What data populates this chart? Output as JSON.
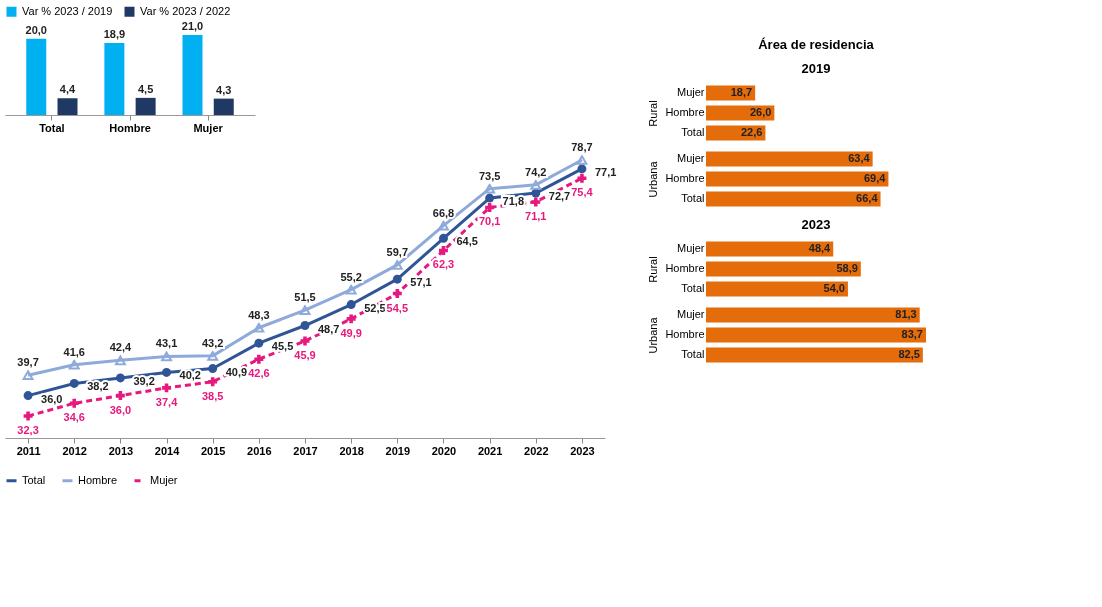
{
  "chart_data": [
    {
      "type": "bar",
      "categories": [
        "Total",
        "Hombre",
        "Mujer"
      ],
      "legend": "top",
      "tick_labels": "x",
      "series": [
        {
          "name": "Var % 2023 / 2019",
          "color": "#00b0f0",
          "values": [
            20.0,
            18.9,
            21.0
          ],
          "value_labels": [
            "20,0",
            "18,9",
            "21,0"
          ]
        },
        {
          "name": "Var % 2023 / 2022",
          "color": "#1f3864",
          "values": [
            4.4,
            4.5,
            4.3
          ],
          "value_labels": [
            "4,4",
            "4,5",
            "4,3"
          ]
        }
      ]
    },
    {
      "type": "line",
      "categories": [
        "2011",
        "2012",
        "2013",
        "2014",
        "2015",
        "2016",
        "2017",
        "2018",
        "2019",
        "2020",
        "2021",
        "2022",
        "2023"
      ],
      "legend": "bottom",
      "tick_labels": "x",
      "grid": false,
      "series": [
        {
          "name": "Total",
          "color": "#2f5597",
          "marker": "circle",
          "line_style": "solid",
          "values": [
            36.0,
            38.2,
            39.2,
            40.2,
            40.9,
            45.5,
            48.7,
            52.5,
            57.1,
            64.5,
            71.8,
            72.7,
            77.1
          ],
          "value_labels": [
            "36,0",
            "38,2",
            "39,2",
            "40,2",
            "40,9",
            "45,5",
            "48,7",
            "52,5",
            "57,1",
            "64,5",
            "71,8",
            "72,7",
            "77,1"
          ]
        },
        {
          "name": "Hombre",
          "color": "#8eaadb",
          "marker": "triangle",
          "line_style": "solid",
          "values": [
            39.7,
            41.6,
            42.4,
            43.1,
            43.2,
            48.3,
            51.5,
            55.2,
            59.7,
            66.8,
            73.5,
            74.2,
            78.7
          ],
          "value_labels": [
            "39,7",
            "41,6",
            "42,4",
            "43,1",
            "43,2",
            "48,3",
            "51,5",
            "55,2",
            "59,7",
            "66,8",
            "73,5",
            "74,2",
            "78,7"
          ]
        },
        {
          "name": "Mujer",
          "color": "#e6197e",
          "marker": "cross",
          "line_style": "dashed",
          "values": [
            32.3,
            34.6,
            36.0,
            37.4,
            38.5,
            42.6,
            45.9,
            49.9,
            54.5,
            62.3,
            70.1,
            71.1,
            75.4
          ],
          "value_labels": [
            "32,3",
            "34,6",
            "36,0",
            "37,4",
            "38,5",
            "42,6",
            "45,9",
            "49,9",
            "54,5",
            "62,3",
            "70,1",
            "71,1",
            "75,4"
          ]
        }
      ]
    },
    {
      "type": "other",
      "title": "Área de residencia"
    },
    {
      "type": "other",
      "title": "2019"
    },
    {
      "type": "bar",
      "orientation": "horizontal",
      "ylabel": "Rural",
      "categories": [
        "Mujer",
        "Hombre",
        "Total"
      ],
      "values": [
        18.7,
        26.0,
        22.6
      ],
      "value_labels": [
        "18,7",
        "26,0",
        "22,6"
      ],
      "color": "#e46c0a",
      "tick_labels": "y"
    },
    {
      "type": "bar",
      "orientation": "horizontal",
      "ylabel": "Urbana",
      "categories": [
        "Mujer",
        "Hombre",
        "Total"
      ],
      "values": [
        63.4,
        69.4,
        66.4
      ],
      "value_labels": [
        "63,4",
        "69,4",
        "66,4"
      ],
      "color": "#e46c0a",
      "tick_labels": "y"
    },
    {
      "type": "other",
      "title": "2023"
    },
    {
      "type": "bar",
      "orientation": "horizontal",
      "ylabel": "Rural",
      "categories": [
        "Mujer",
        "Hombre",
        "Total"
      ],
      "values": [
        48.4,
        58.9,
        54.0
      ],
      "value_labels": [
        "48,4",
        "58,9",
        "54,0"
      ],
      "color": "#e46c0a",
      "tick_labels": "y"
    },
    {
      "type": "bar",
      "orientation": "horizontal",
      "ylabel": "Urbana",
      "categories": [
        "Mujer",
        "Hombre",
        "Total"
      ],
      "values": [
        81.3,
        83.7,
        82.5
      ],
      "value_labels": [
        "81,3",
        "83,7",
        "82,5"
      ],
      "color": "#e46c0a",
      "tick_labels": "y"
    }
  ]
}
